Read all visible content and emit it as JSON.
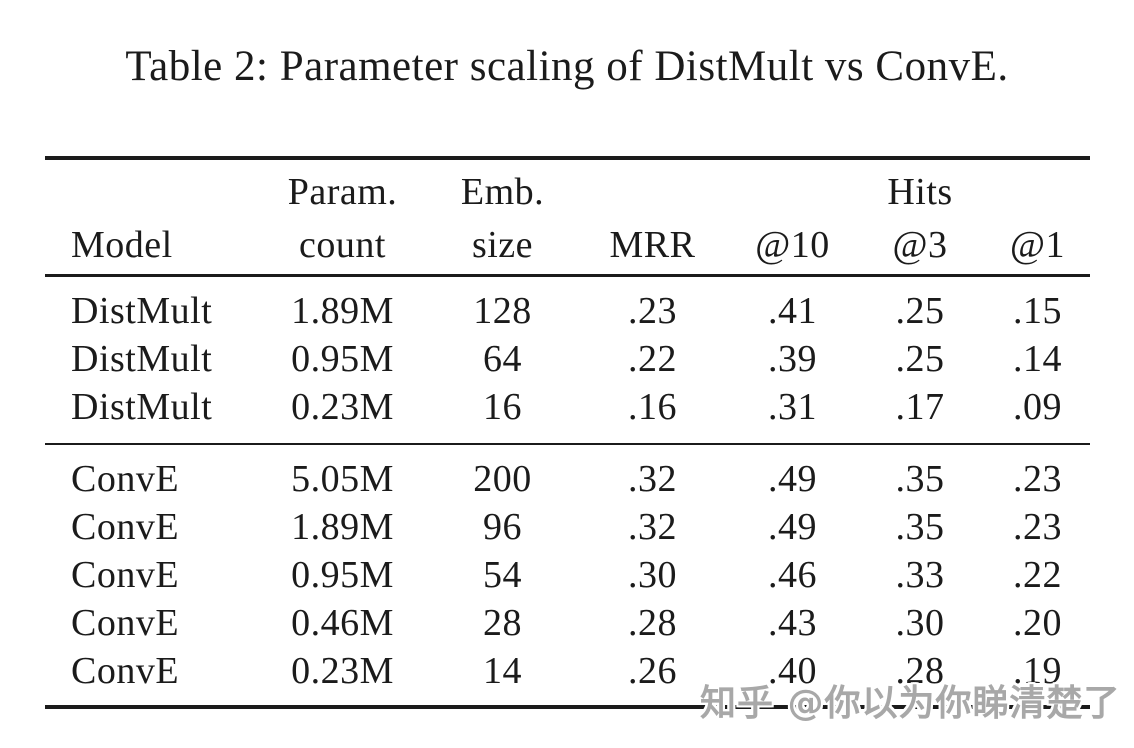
{
  "title": "Table 2: Parameter scaling of DistMult vs ConvE.",
  "table": {
    "header": {
      "group_row": {
        "param": "Param.",
        "emb": "Emb.",
        "hits": "Hits"
      },
      "column_row": {
        "model": "Model",
        "count": "count",
        "size": "size",
        "mrr": "MRR",
        "at10": "@10",
        "at3": "@3",
        "at1": "@1"
      }
    },
    "groups": [
      {
        "rows": [
          {
            "model": "DistMult",
            "param_count": "1.89M",
            "emb_size": "128",
            "mrr": ".23",
            "hits_at10": ".41",
            "hits_at3": ".25",
            "hits_at1": ".15"
          },
          {
            "model": "DistMult",
            "param_count": "0.95M",
            "emb_size": "64",
            "mrr": ".22",
            "hits_at10": ".39",
            "hits_at3": ".25",
            "hits_at1": ".14"
          },
          {
            "model": "DistMult",
            "param_count": "0.23M",
            "emb_size": "16",
            "mrr": ".16",
            "hits_at10": ".31",
            "hits_at3": ".17",
            "hits_at1": ".09"
          }
        ]
      },
      {
        "rows": [
          {
            "model": "ConvE",
            "param_count": "5.05M",
            "emb_size": "200",
            "mrr": ".32",
            "hits_at10": ".49",
            "hits_at3": ".35",
            "hits_at1": ".23"
          },
          {
            "model": "ConvE",
            "param_count": "1.89M",
            "emb_size": "96",
            "mrr": ".32",
            "hits_at10": ".49",
            "hits_at3": ".35",
            "hits_at1": ".23"
          },
          {
            "model": "ConvE",
            "param_count": "0.95M",
            "emb_size": "54",
            "mrr": ".30",
            "hits_at10": ".46",
            "hits_at3": ".33",
            "hits_at1": ".22"
          },
          {
            "model": "ConvE",
            "param_count": "0.46M",
            "emb_size": "28",
            "mrr": ".28",
            "hits_at10": ".43",
            "hits_at3": ".30",
            "hits_at1": ".20"
          },
          {
            "model": "ConvE",
            "param_count": "0.23M",
            "emb_size": "14",
            "mrr": ".26",
            "hits_at10": ".40",
            "hits_at3": ".28",
            "hits_at1": ".19"
          }
        ]
      }
    ]
  },
  "watermark": {
    "text": "知乎 @你以为你睇清楚了",
    "color": "#a8a8a8"
  },
  "colors": {
    "text": "#1b1b1b",
    "rule": "#1b1b1b",
    "background": "#ffffff"
  }
}
